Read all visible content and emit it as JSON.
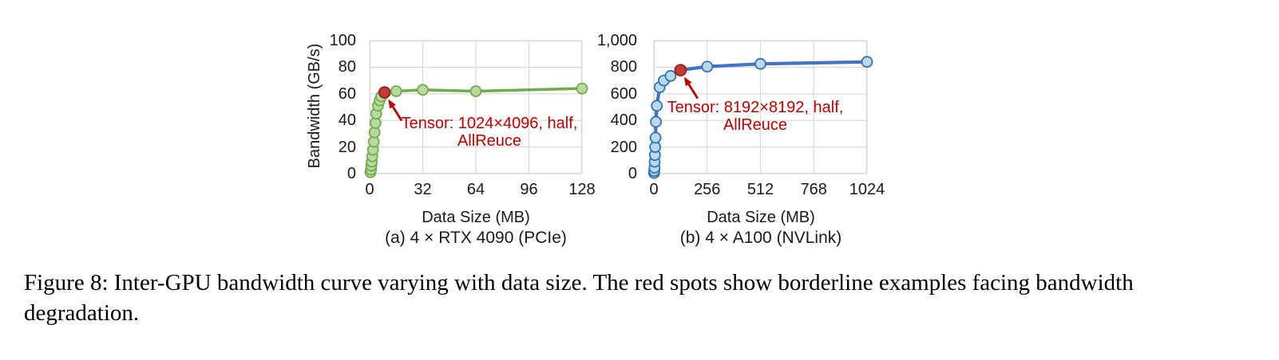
{
  "figure_caption": {
    "lines": [
      "Figure 8: Inter-GPU bandwidth curve varying with data size. The red spots show borderline examples facing bandwidth",
      "degradation."
    ]
  },
  "style": {
    "grid_color": "#d9d9d9",
    "tick_text_color": "#1a1a1a",
    "red_accent": "#c00000",
    "red_marker_fill": "#c13b34",
    "red_marker_stroke": "#8f2420"
  },
  "chart_data": [
    {
      "type": "line",
      "panel_label": "(a) 4 × RTX 4090 (PCIe)",
      "xlabel": "Data Size (MB)",
      "ylabel": "Bandwidth (GB/s)",
      "xlim": [
        0,
        128
      ],
      "ylim": [
        0,
        100
      ],
      "xticks": [
        0,
        32,
        64,
        96,
        128
      ],
      "xtick_labels": [
        "0",
        "32",
        "64",
        "96",
        "128"
      ],
      "yticks": [
        0,
        20,
        40,
        60,
        80,
        100
      ],
      "ytick_labels": [
        "0",
        "20",
        "40",
        "60",
        "80",
        "100"
      ],
      "grid": true,
      "legend": "none",
      "line_color": "#70ad47",
      "marker_fill": "#b9d9a2",
      "marker_stroke": "#70ad47",
      "points": [
        [
          0.5,
          1
        ],
        [
          0.8,
          3
        ],
        [
          1,
          6
        ],
        [
          1.3,
          9
        ],
        [
          1.6,
          13
        ],
        [
          2,
          18
        ],
        [
          2.5,
          24
        ],
        [
          3,
          31
        ],
        [
          3.5,
          38
        ],
        [
          4,
          45
        ],
        [
          5,
          51
        ],
        [
          6,
          55
        ],
        [
          7,
          58
        ],
        [
          9,
          61
        ],
        [
          16,
          62
        ],
        [
          32,
          63
        ],
        [
          64,
          62
        ],
        [
          128,
          64
        ]
      ],
      "red_point": [
        9,
        61
      ],
      "red_point_meaning": "borderline example facing bandwidth degradation",
      "annotation": {
        "lines": [
          "Tensor: 1024×4096, half,",
          "AllReuce"
        ],
        "color": "#c00000"
      }
    },
    {
      "type": "line",
      "panel_label": "(b) 4 × A100 (NVLink)",
      "xlabel": "Data Size (MB)",
      "ylabel": "",
      "xlim": [
        0,
        1024
      ],
      "ylim": [
        0,
        1000
      ],
      "xticks": [
        0,
        256,
        512,
        768,
        1024
      ],
      "xtick_labels": [
        "0",
        "256",
        "512",
        "768",
        "1024"
      ],
      "yticks": [
        0,
        200,
        400,
        600,
        800,
        1000
      ],
      "ytick_labels": [
        "0",
        "200",
        "400",
        "600",
        "800",
        "1,000"
      ],
      "grid": true,
      "legend": "none",
      "line_color": "#4472c4",
      "marker_fill": "#bdd7ee",
      "marker_stroke": "#2e75b6",
      "points": [
        [
          1,
          5
        ],
        [
          2,
          20
        ],
        [
          3,
          45
        ],
        [
          4,
          90
        ],
        [
          5,
          140
        ],
        [
          6,
          200
        ],
        [
          8,
          270
        ],
        [
          10,
          390
        ],
        [
          14,
          510
        ],
        [
          28,
          650
        ],
        [
          48,
          700
        ],
        [
          80,
          735
        ],
        [
          128,
          778
        ],
        [
          256,
          805
        ],
        [
          512,
          825
        ],
        [
          1024,
          840
        ]
      ],
      "red_point": [
        128,
        778
      ],
      "red_point_meaning": "borderline example facing bandwidth degradation",
      "annotation": {
        "lines": [
          "Tensor: 8192×8192, half,",
          "AllReuce"
        ],
        "color": "#c00000"
      }
    }
  ]
}
